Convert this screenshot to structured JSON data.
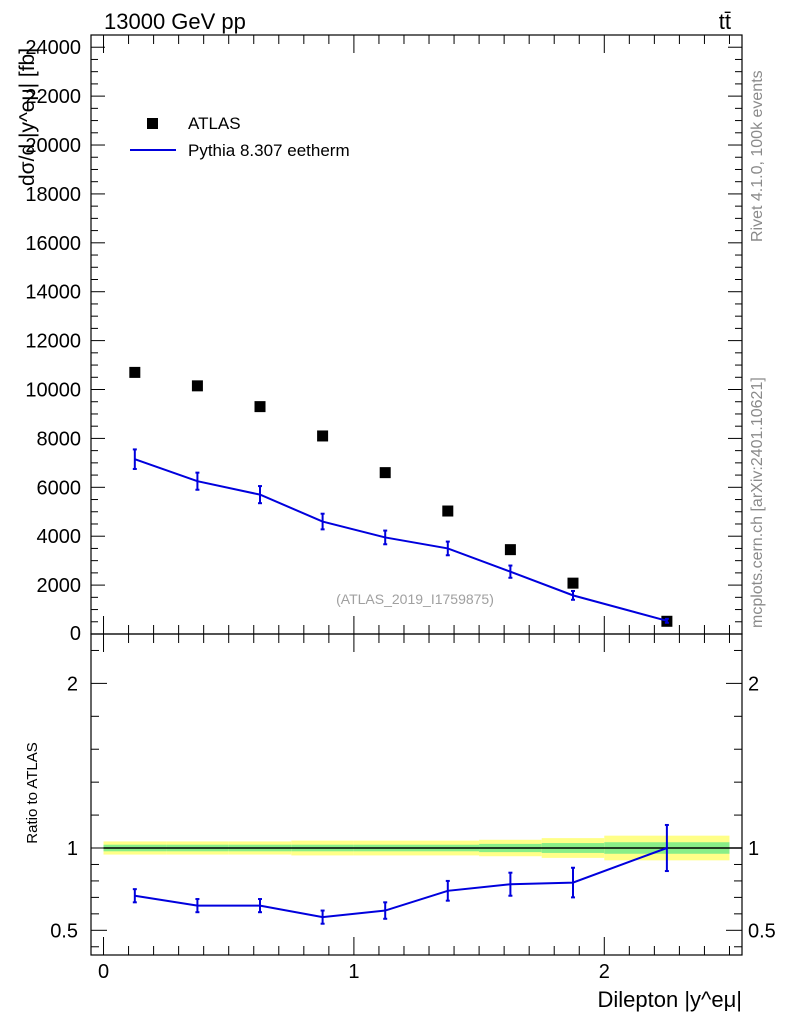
{
  "header": {
    "energy_label": "13000 GeV pp",
    "process_label": "tt̄"
  },
  "side_labels": {
    "rivet": "Rivet 4.1.0,  100k events",
    "mcplots": "mcplots.cern.ch [arXiv:2401.10621]"
  },
  "analysis_label": "(ATLAS_2019_I1759875)",
  "chart_data": [
    {
      "type": "scatter",
      "panel": "main",
      "title": "",
      "xlabel": "Dilepton |y^eμ|",
      "ylabel": "dσ/d |y^eμ| [fb]",
      "xlim": [
        -0.05,
        2.55
      ],
      "ylim": [
        0,
        24500
      ],
      "y_ticks": [
        2000,
        4000,
        6000,
        8000,
        10000,
        12000,
        14000,
        16000,
        18000,
        20000,
        22000,
        24000
      ],
      "y_tick_labels": [
        "2000",
        "4000",
        "6000",
        "8000",
        "10000",
        "12000",
        "14000",
        "16000",
        "18000",
        "20000",
        "22000",
        "24000"
      ],
      "y_zero_label": "0",
      "legend": {
        "placement": "top-left",
        "entries": [
          "ATLAS",
          "Pythia 8.307 eetherm"
        ]
      },
      "series": [
        {
          "name": "ATLAS",
          "style": "markers",
          "color": "#000000",
          "x": [
            0.125,
            0.375,
            0.625,
            0.875,
            1.125,
            1.375,
            1.625,
            1.875,
            2.25
          ],
          "values": [
            10700,
            10150,
            9300,
            8100,
            6600,
            5030,
            3450,
            2080,
            520
          ]
        },
        {
          "name": "Pythia 8.307 eetherm",
          "style": "line",
          "color": "#0000dd",
          "x": [
            0.125,
            0.375,
            0.625,
            0.875,
            1.125,
            1.375,
            1.625,
            1.875,
            2.25
          ],
          "values": [
            7150,
            6250,
            5700,
            4600,
            3950,
            3500,
            2550,
            1580,
            540
          ],
          "errors": [
            400,
            350,
            350,
            320,
            280,
            280,
            250,
            180,
            80
          ]
        }
      ]
    },
    {
      "type": "line",
      "panel": "ratio",
      "title": "",
      "xlabel": "Dilepton |y^eμ|",
      "ylabel": "Ratio to ATLAS",
      "xlim": [
        -0.05,
        2.55
      ],
      "ylim": [
        0.35,
        2.3
      ],
      "x_ticks": [
        0,
        1,
        2
      ],
      "x_tick_labels": [
        "0",
        "1",
        "2"
      ],
      "y_ticks": [
        0.5,
        1,
        2
      ],
      "y_tick_labels": [
        "0.5",
        "1",
        "2"
      ],
      "reference_line": 1.0,
      "uncertainty_bands": {
        "bin_edges": [
          0.0,
          0.25,
          0.5,
          0.75,
          1.0,
          1.25,
          1.5,
          1.75,
          2.0,
          2.5
        ],
        "yellow_half_width": [
          0.04,
          0.04,
          0.04,
          0.045,
          0.045,
          0.045,
          0.05,
          0.06,
          0.075
        ],
        "green_half_width": [
          0.02,
          0.02,
          0.02,
          0.02,
          0.02,
          0.02,
          0.025,
          0.03,
          0.035
        ],
        "colors": {
          "yellow": "#ffff88",
          "green": "#88ee88"
        }
      },
      "series": [
        {
          "name": "Pythia 8.307 eetherm",
          "color": "#0000dd",
          "x": [
            0.125,
            0.375,
            0.625,
            0.875,
            1.125,
            1.375,
            1.625,
            1.875,
            2.25
          ],
          "values": [
            0.71,
            0.65,
            0.65,
            0.58,
            0.62,
            0.74,
            0.78,
            0.79,
            1.0
          ],
          "errors": [
            0.04,
            0.04,
            0.04,
            0.04,
            0.05,
            0.06,
            0.07,
            0.09,
            0.14
          ]
        }
      ]
    }
  ]
}
